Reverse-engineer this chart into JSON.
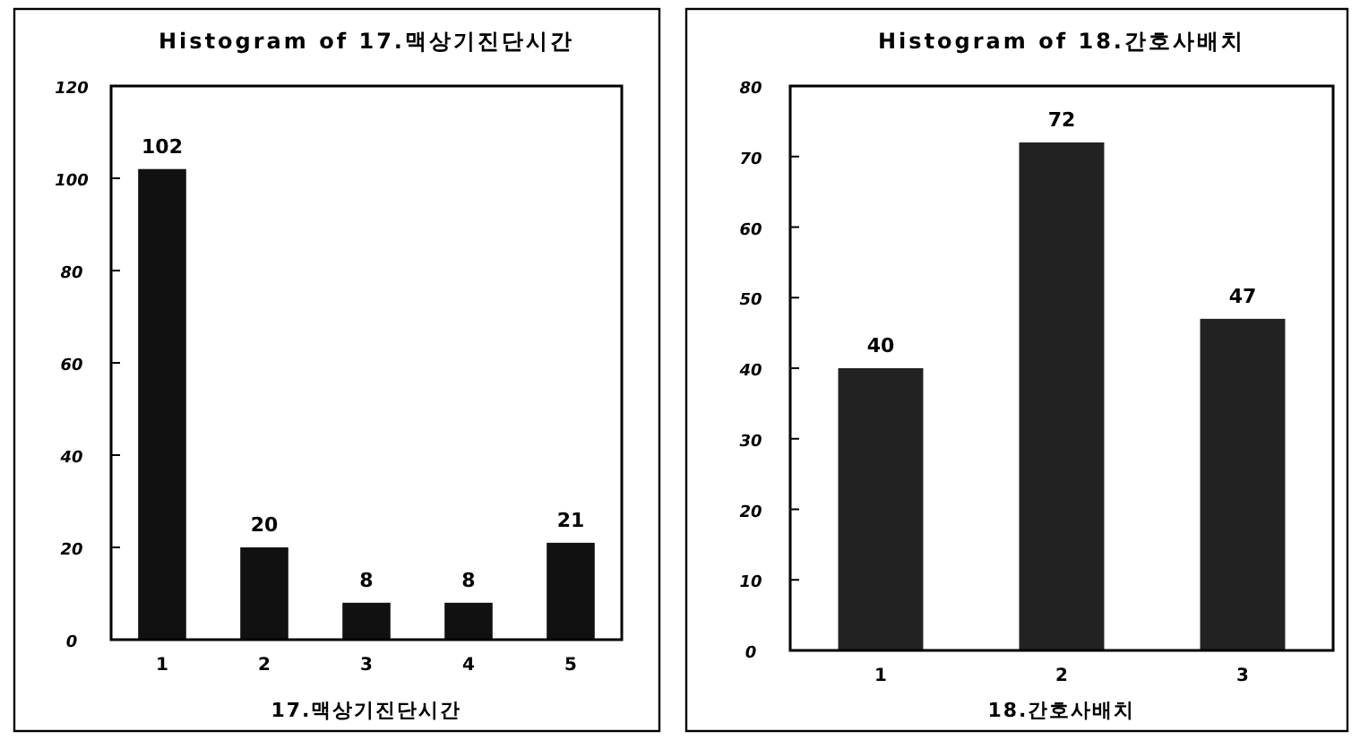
{
  "chart_data": [
    {
      "type": "bar",
      "title": "Histogram of 17.맥상기진단시간",
      "xlabel": "17.맥상기진단시간",
      "categories": [
        "1",
        "2",
        "3",
        "4",
        "5"
      ],
      "values": [
        102,
        20,
        8,
        8,
        21
      ],
      "color": "#111111",
      "ylim": [
        0,
        120
      ],
      "yticks": [
        0,
        20,
        40,
        60,
        80,
        100,
        120
      ],
      "data_labels": true,
      "grid": false
    },
    {
      "type": "bar",
      "title": "Histogram of 18.간호사배치",
      "xlabel": "18.간호사배치",
      "categories": [
        "1",
        "2",
        "3"
      ],
      "values": [
        40,
        72,
        47
      ],
      "color": "#222222",
      "ylim": [
        0,
        80
      ],
      "yticks": [
        0,
        10,
        20,
        30,
        40,
        50,
        60,
        70,
        80
      ],
      "data_labels": true,
      "grid": false
    }
  ]
}
